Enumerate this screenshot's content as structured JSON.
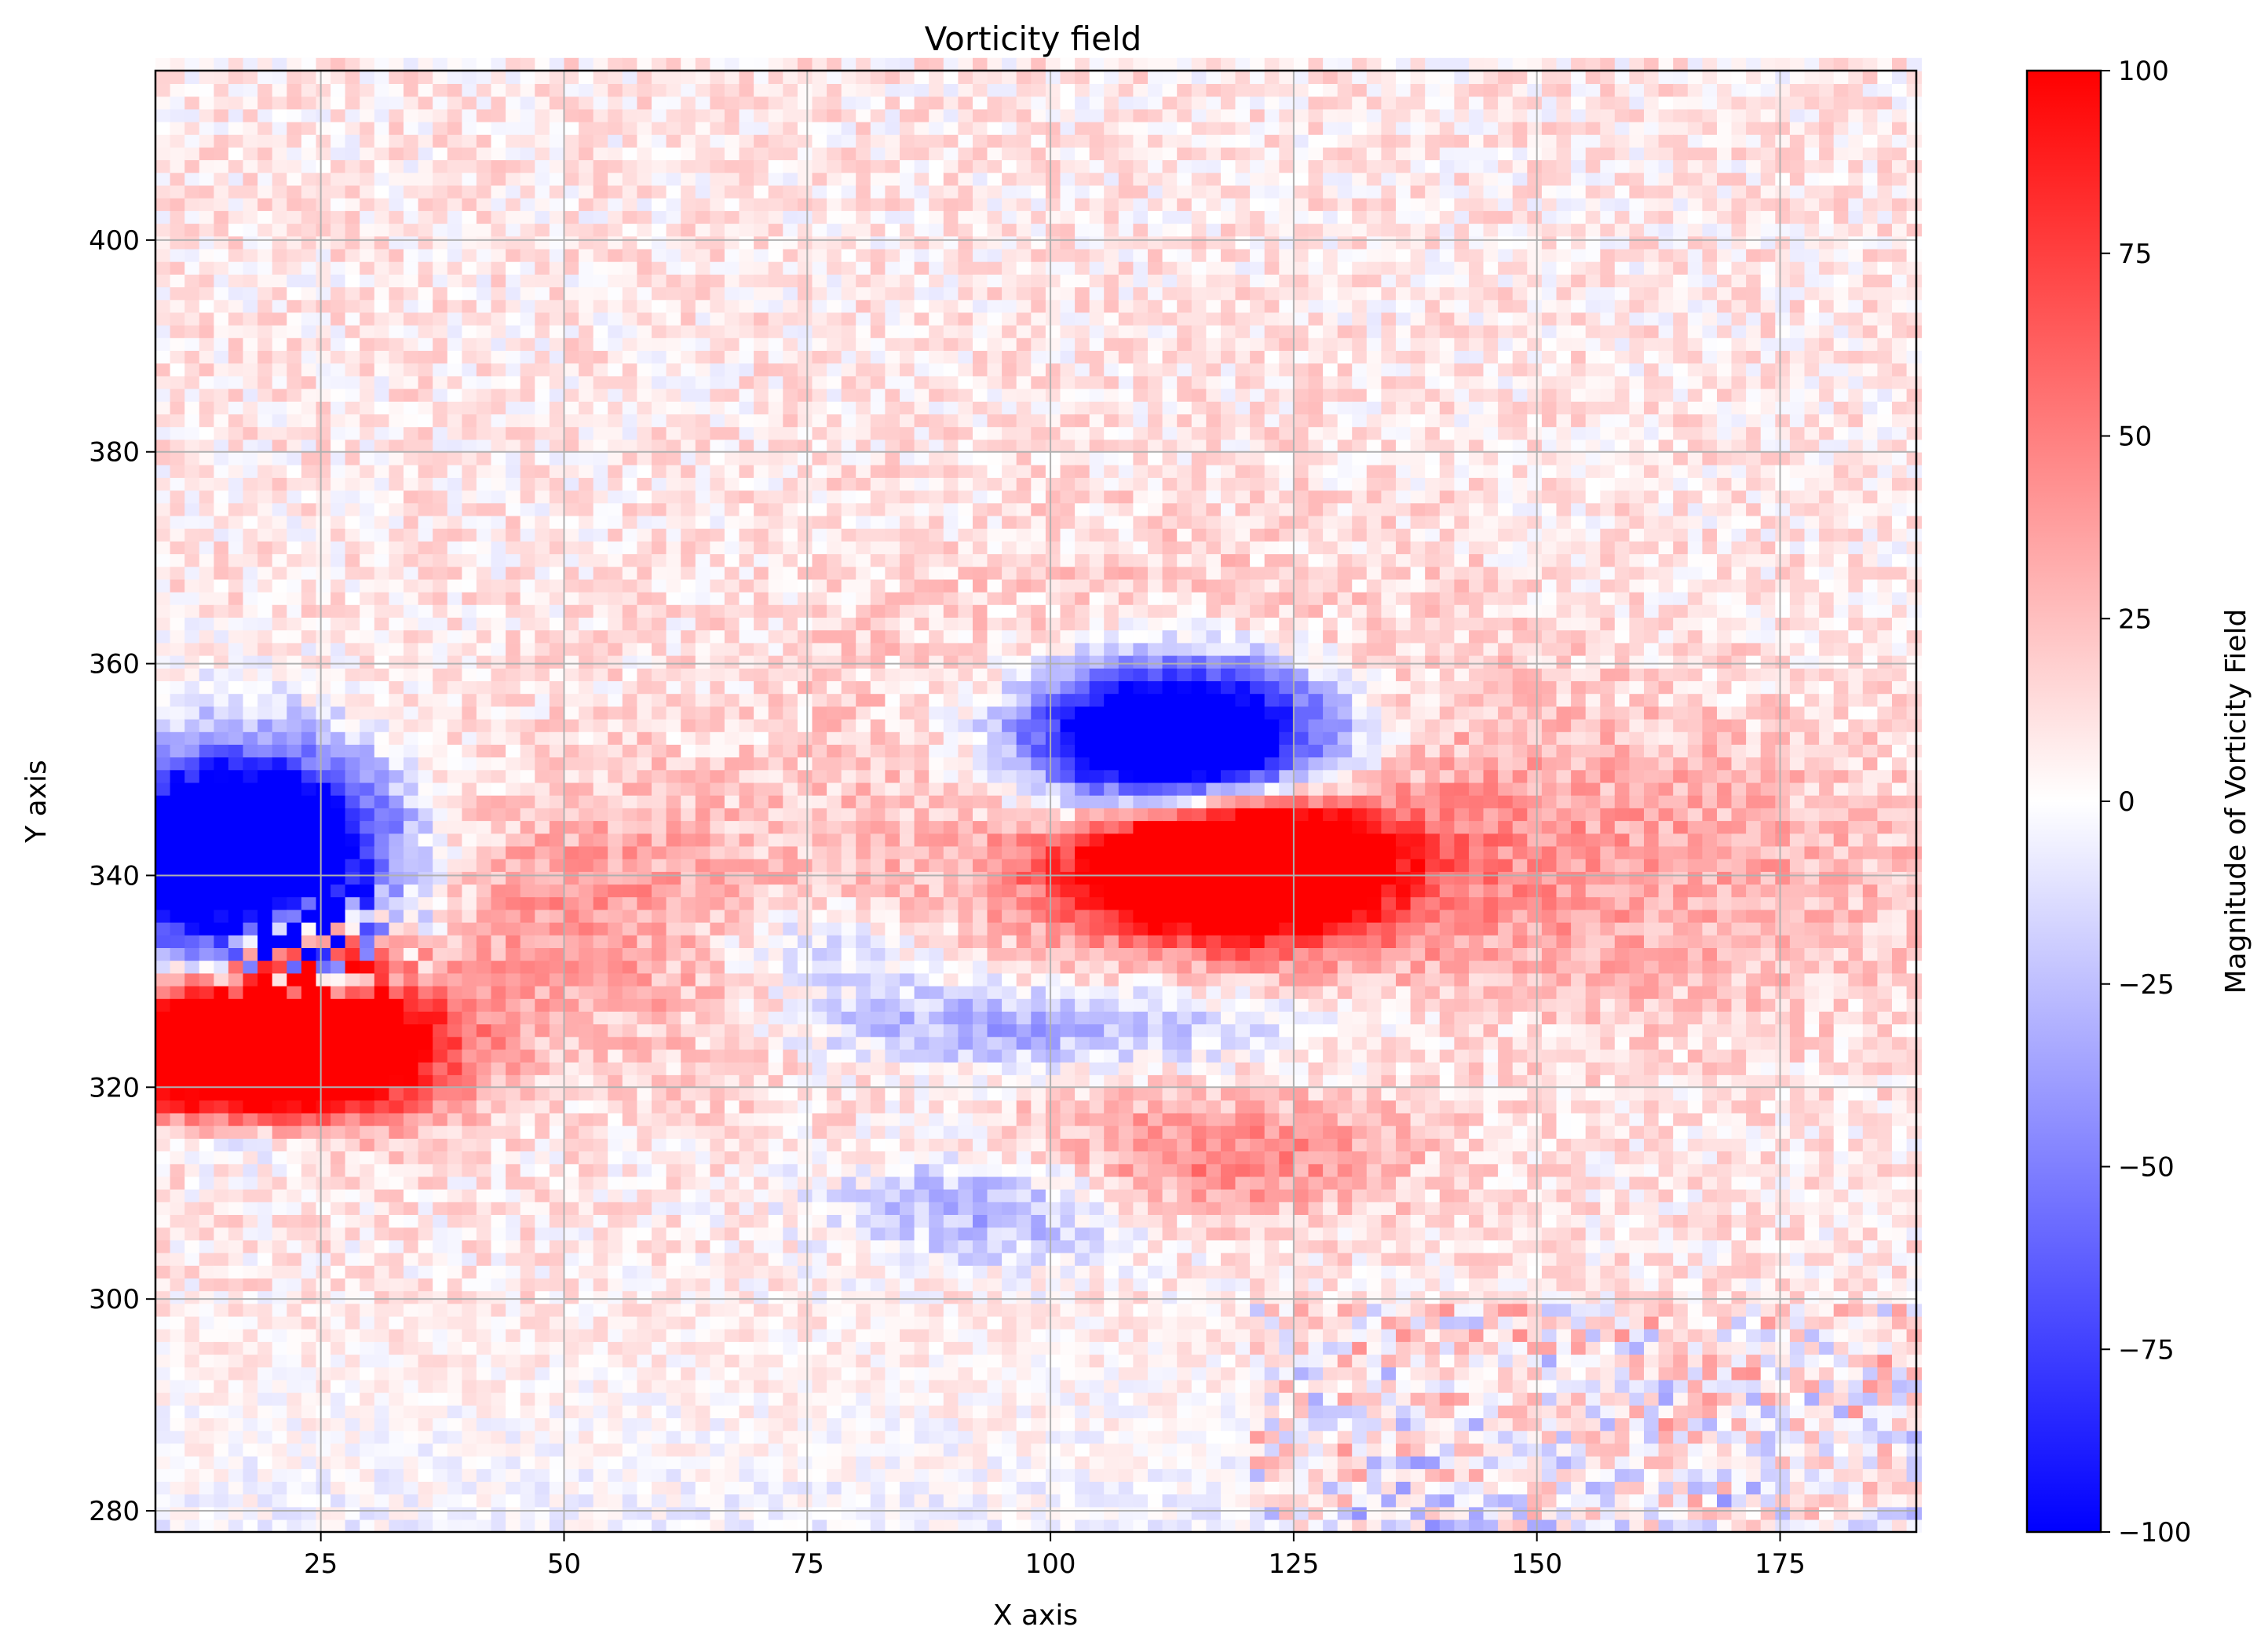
{
  "chart_data": {
    "type": "heatmap",
    "title": "Vorticity field",
    "xlabel": "X axis",
    "ylabel": "Y axis",
    "xlim": [
      8,
      189
    ],
    "ylim": [
      278,
      416
    ],
    "xticks": [
      25,
      50,
      75,
      100,
      125,
      150,
      175
    ],
    "yticks": [
      280,
      300,
      320,
      340,
      360,
      380,
      400
    ],
    "grid": true,
    "colormap": {
      "name": "bwr",
      "low_color": "#0000ff",
      "mid_color": "#ffffff",
      "high_color": "#ff0000"
    },
    "colorbar": {
      "label": "Magnitude of Vorticity Field",
      "range": [
        -100,
        100
      ],
      "ticks": [
        -100,
        -75,
        -50,
        -25,
        0,
        25,
        50,
        75,
        100
      ],
      "tick_labels": [
        "−100",
        "−75",
        "−50",
        "−25",
        "0",
        "25",
        "50",
        "75",
        "100"
      ]
    },
    "features": [
      {
        "name": "left vortex negative core",
        "x": 20,
        "y": 340,
        "value": -100
      },
      {
        "name": "left vortex positive core",
        "x": 20,
        "y": 325,
        "value": 100
      },
      {
        "name": "right vortex negative core",
        "x": 113,
        "y": 352,
        "value": -100
      },
      {
        "name": "right vortex positive core",
        "x": 118,
        "y": 340,
        "value": 100
      },
      {
        "name": "negative shear band",
        "x": 100,
        "y": 325,
        "value": -45
      },
      {
        "name": "negative band lower",
        "x": 95,
        "y": 308,
        "value": -40
      },
      {
        "name": "positive band",
        "x": 115,
        "y": 312,
        "value": 40
      },
      {
        "name": "positive wake",
        "x": 50,
        "y": 338,
        "value": 25
      }
    ]
  }
}
